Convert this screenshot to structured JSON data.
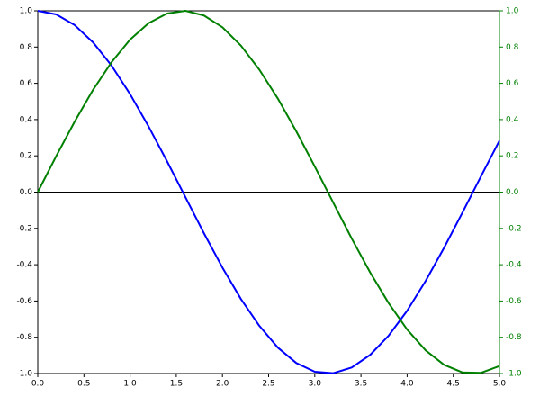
{
  "chart_data": {
    "type": "line",
    "x": [
      0,
      0.2,
      0.4,
      0.6,
      0.8,
      1,
      1.2,
      1.4,
      1.6,
      1.8,
      2,
      2.2,
      2.4,
      2.6,
      2.8,
      3,
      3.2,
      3.4,
      3.6,
      3.8,
      4,
      4.2,
      4.4,
      4.6,
      4.8,
      5
    ],
    "series": [
      {
        "color": "#0000ff",
        "values": [
          1,
          0.98,
          0.921,
          0.825,
          0.697,
          0.54,
          0.362,
          0.17,
          -0.029,
          -0.227,
          -0.416,
          -0.589,
          -0.737,
          -0.857,
          -0.942,
          -0.99,
          -0.998,
          -0.967,
          -0.897,
          -0.791,
          -0.654,
          -0.49,
          -0.307,
          -0.112,
          0.087,
          0.284
        ]
      },
      {
        "color": "#008000",
        "axis": "y2",
        "values": [
          0,
          0.199,
          0.389,
          0.565,
          0.717,
          0.841,
          0.932,
          0.985,
          1,
          0.974,
          0.909,
          0.808,
          0.675,
          0.516,
          0.335,
          0.141,
          -0.058,
          -0.256,
          -0.443,
          -0.612,
          -0.757,
          -0.872,
          -0.952,
          -0.994,
          -0.996,
          -0.959
        ]
      }
    ],
    "xlim": [
      0,
      5
    ],
    "xticks": [
      {
        "value": 0,
        "label": "0.0"
      },
      0.5,
      {
        "value": 1,
        "label": "1.0"
      },
      1.5,
      {
        "value": 2,
        "label": "2.0"
      },
      2.5,
      {
        "value": 3,
        "label": "3.0"
      },
      3.5,
      {
        "value": 4,
        "label": "4.0"
      },
      4.5,
      {
        "value": 5,
        "label": "5.0"
      }
    ],
    "ylim": [
      -1,
      1
    ],
    "yticks": [
      {
        "value": -1,
        "label": "-1.0"
      },
      -0.8,
      -0.6,
      -0.4,
      -0.2,
      {
        "value": 0,
        "label": "0.0"
      },
      0.2,
      0.4,
      0.6,
      0.8,
      {
        "value": 1,
        "label": "1.0"
      }
    ],
    "y2lim": [
      -1,
      1
    ],
    "y2ticks": [
      {
        "value": -1,
        "label": "-1.0"
      },
      -0.8,
      -0.6,
      -0.4,
      -0.2,
      {
        "value": 0,
        "label": "0.0"
      },
      0.2,
      0.4,
      0.6,
      0.8,
      {
        "value": 1,
        "label": "1.0"
      }
    ],
    "y2color": "#008000",
    "grid": false
  }
}
